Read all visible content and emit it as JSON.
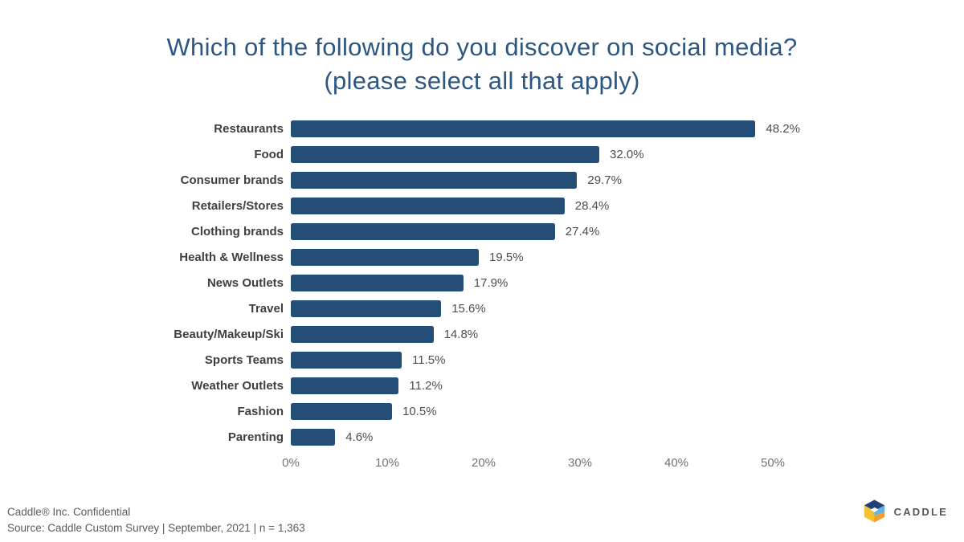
{
  "chart_data": {
    "type": "bar",
    "orientation": "horizontal",
    "title": "Which of the following do you discover on social media? (please select all that apply)",
    "title_line1": "Which of the following do you discover on social media?",
    "title_line2": "(please select all that apply)",
    "categories": [
      "Restaurants",
      "Food",
      "Consumer brands",
      "Retailers/Stores",
      "Clothing brands",
      "Health & Wellness",
      "News Outlets",
      "Travel",
      "Beauty/Makeup/Ski",
      "Sports Teams",
      "Weather Outlets",
      "Fashion",
      "Parenting"
    ],
    "values": [
      48.2,
      32.0,
      29.7,
      28.4,
      27.4,
      19.5,
      17.9,
      15.6,
      14.8,
      11.5,
      11.2,
      10.5,
      4.6
    ],
    "value_labels": [
      "48.2%",
      "32.0%",
      "29.7%",
      "28.4%",
      "27.4%",
      "19.5%",
      "17.9%",
      "15.6%",
      "14.8%",
      "11.5%",
      "11.2%",
      "10.5%",
      "4.6%"
    ],
    "x_ticks": [
      "0%",
      "10%",
      "20%",
      "30%",
      "40%",
      "50%"
    ],
    "xlim": [
      0,
      50
    ],
    "xlabel": "",
    "ylabel": "",
    "grid": false,
    "legend": false,
    "bar_color": "#254e77"
  },
  "footer": {
    "line1": "Caddle® Inc. Confidential",
    "line2": "Source: Caddle Custom Survey | September, 2021 | n = 1,363"
  },
  "logo": {
    "text": "CADDLE",
    "colors": {
      "navy": "#233f78",
      "light_blue": "#5cb7e7",
      "yellow": "#f2c230",
      "orange": "#f59d2f"
    }
  }
}
